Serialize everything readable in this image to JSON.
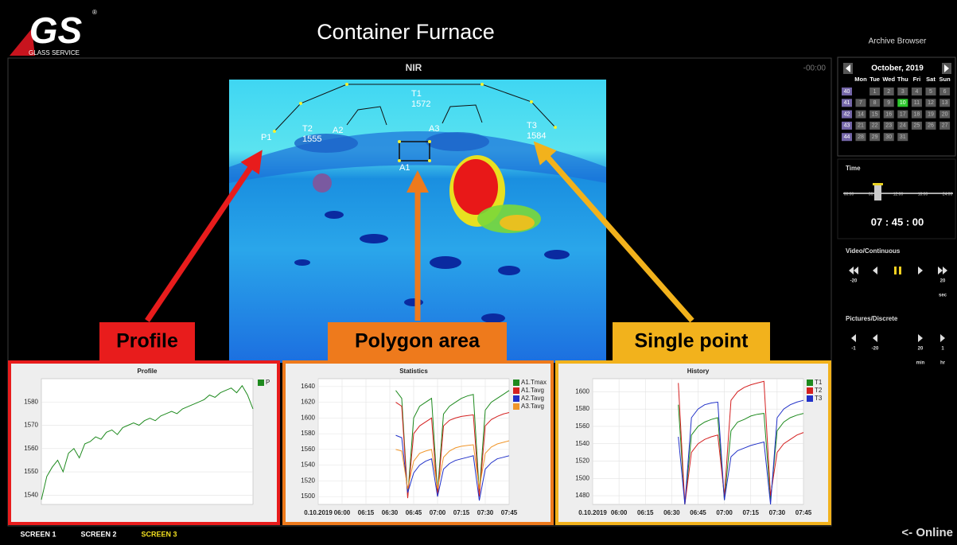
{
  "header": {
    "logo": "GS",
    "logo_mark": "®",
    "logo_sub": "GLASS SERVICE",
    "title": "Container Furnace"
  },
  "viewer": {
    "title": "NIR",
    "time_offset": "-00:00",
    "image_labels": [
      {
        "name": "T1",
        "value": 1572
      },
      {
        "name": "T2",
        "value": 1555
      },
      {
        "name": "T3",
        "value": 1584
      }
    ],
    "markers": [
      "P1",
      "A2",
      "A3",
      "A1"
    ]
  },
  "callouts": [
    "Profile",
    "Polygon area",
    "Single point"
  ],
  "chart_data": [
    {
      "type": "line",
      "title": "Profile",
      "grid": true,
      "ylim": [
        1536,
        1590
      ],
      "yticks": [
        1540,
        1550,
        1560,
        1570,
        1580
      ],
      "series": [
        {
          "name": "P",
          "color": "#1e8a1e",
          "values": [
            1538,
            1548,
            1552,
            1555,
            1550,
            1558,
            1560,
            1556,
            1562,
            1563,
            1565,
            1564,
            1567,
            1568,
            1566,
            1569,
            1570,
            1571,
            1570,
            1572,
            1573,
            1572,
            1574,
            1575,
            1576,
            1575,
            1577,
            1578,
            1579,
            1580,
            1581,
            1583,
            1582,
            1584,
            1585,
            1586,
            1584,
            1587,
            1583,
            1577
          ]
        }
      ]
    },
    {
      "type": "line",
      "title": "Statistics",
      "grid": true,
      "ylim": [
        1490,
        1650
      ],
      "yticks": [
        1500,
        1520,
        1540,
        1560,
        1580,
        1600,
        1620,
        1640
      ],
      "x_labels": [
        "0.10.2019",
        "06:00",
        "06:15",
        "06:30",
        "06:45",
        "07:00",
        "07:15",
        "07:30",
        "07:45"
      ],
      "series": [
        {
          "name": "A1.Tmax",
          "color": "#1e8a1e",
          "values": [
            null,
            null,
            null,
            null,
            null,
            null,
            null,
            null,
            null,
            null,
            null,
            null,
            null,
            1635,
            1625,
            1500,
            1600,
            1615,
            1620,
            1625,
            1505,
            1605,
            1615,
            1620,
            1625,
            1628,
            1630,
            1505,
            1610,
            1620,
            1625,
            1630,
            1635
          ]
        },
        {
          "name": "A1.Tavg",
          "color": "#d42020",
          "values": [
            null,
            null,
            null,
            null,
            null,
            null,
            null,
            null,
            null,
            null,
            null,
            null,
            null,
            1620,
            1615,
            1498,
            1580,
            1590,
            1595,
            1600,
            1500,
            1590,
            1597,
            1600,
            1602,
            1603,
            1604,
            1500,
            1590,
            1598,
            1602,
            1605,
            1607
          ]
        },
        {
          "name": "A2.Tavg",
          "color": "#2030c8",
          "values": [
            null,
            null,
            null,
            null,
            null,
            null,
            null,
            null,
            null,
            null,
            null,
            null,
            null,
            1578,
            1575,
            1505,
            1530,
            1540,
            1545,
            1548,
            1500,
            1535,
            1542,
            1546,
            1548,
            1550,
            1552,
            1495,
            1535,
            1543,
            1548,
            1550,
            1552
          ]
        },
        {
          "name": "A3.Tavg",
          "color": "#f0962a",
          "values": [
            null,
            null,
            null,
            null,
            null,
            null,
            null,
            null,
            null,
            null,
            null,
            null,
            null,
            1560,
            1558,
            1510,
            1545,
            1555,
            1558,
            1560,
            1510,
            1550,
            1558,
            1562,
            1564,
            1565,
            1566,
            1510,
            1555,
            1563,
            1567,
            1569,
            1571
          ]
        }
      ]
    },
    {
      "type": "line",
      "title": "History",
      "grid": true,
      "ylim": [
        1470,
        1615
      ],
      "yticks": [
        1480,
        1500,
        1520,
        1540,
        1560,
        1580,
        1600
      ],
      "x_labels": [
        "0.10.2019",
        "06:00",
        "06:15",
        "06:30",
        "06:45",
        "07:00",
        "07:15",
        "07:30",
        "07:45"
      ],
      "series": [
        {
          "name": "T1",
          "color": "#1e8a1e",
          "values": [
            null,
            null,
            null,
            null,
            null,
            null,
            null,
            null,
            null,
            null,
            null,
            null,
            null,
            1585,
            1470,
            1550,
            1560,
            1565,
            1568,
            1570,
            1475,
            1555,
            1565,
            1568,
            1572,
            1574,
            1575,
            1475,
            1555,
            1565,
            1570,
            1573,
            1575
          ]
        },
        {
          "name": "T2",
          "color": "#d42020",
          "values": [
            null,
            null,
            null,
            null,
            null,
            null,
            null,
            null,
            null,
            null,
            null,
            null,
            null,
            1610,
            1470,
            1530,
            1540,
            1545,
            1548,
            1550,
            1480,
            1590,
            1600,
            1605,
            1608,
            1610,
            1612,
            1480,
            1530,
            1540,
            1545,
            1550,
            1553
          ]
        },
        {
          "name": "T3",
          "color": "#2030c8",
          "values": [
            null,
            null,
            null,
            null,
            null,
            null,
            null,
            null,
            null,
            null,
            null,
            null,
            null,
            1548,
            1470,
            1570,
            1580,
            1585,
            1587,
            1588,
            1475,
            1525,
            1532,
            1535,
            1538,
            1540,
            1542,
            1470,
            1570,
            1580,
            1585,
            1588,
            1590
          ]
        }
      ]
    }
  ],
  "archive": {
    "title": "Archive Browser",
    "month": "October, 2019",
    "weekdays": [
      "Mon",
      "Tue",
      "Wed",
      "Thu",
      "Fri",
      "Sat",
      "Sun"
    ],
    "weeks": [
      {
        "week": 40,
        "days": [
          null,
          1,
          2,
          3,
          4,
          5,
          6
        ]
      },
      {
        "week": 41,
        "days": [
          7,
          8,
          9,
          10,
          11,
          12,
          13
        ]
      },
      {
        "week": 42,
        "days": [
          14,
          15,
          16,
          17,
          18,
          19,
          20
        ]
      },
      {
        "week": 43,
        "days": [
          21,
          22,
          23,
          24,
          25,
          26,
          27
        ]
      },
      {
        "week": 44,
        "days": [
          28,
          29,
          30,
          31
        ]
      }
    ],
    "selected_day": 10,
    "time_label": "Time",
    "time_scale": [
      "00:00",
      "06:00",
      "12:00",
      "18:00",
      "24:00"
    ],
    "clock": "07 : 45 : 00",
    "video_label": "Video/Continuous",
    "video_buttons": [
      "-20",
      "20"
    ],
    "video_unit": "sec",
    "pictures_label": "Pictures/Discrete",
    "picture_buttons": [
      "-1",
      "-20",
      "20",
      "1"
    ],
    "picture_units": [
      "min",
      "hr"
    ]
  },
  "footer": {
    "tabs": [
      "SCREEN 1",
      "SCREEN 2",
      "SCREEN 3"
    ],
    "active_tab": 2,
    "status": "<- Online"
  }
}
